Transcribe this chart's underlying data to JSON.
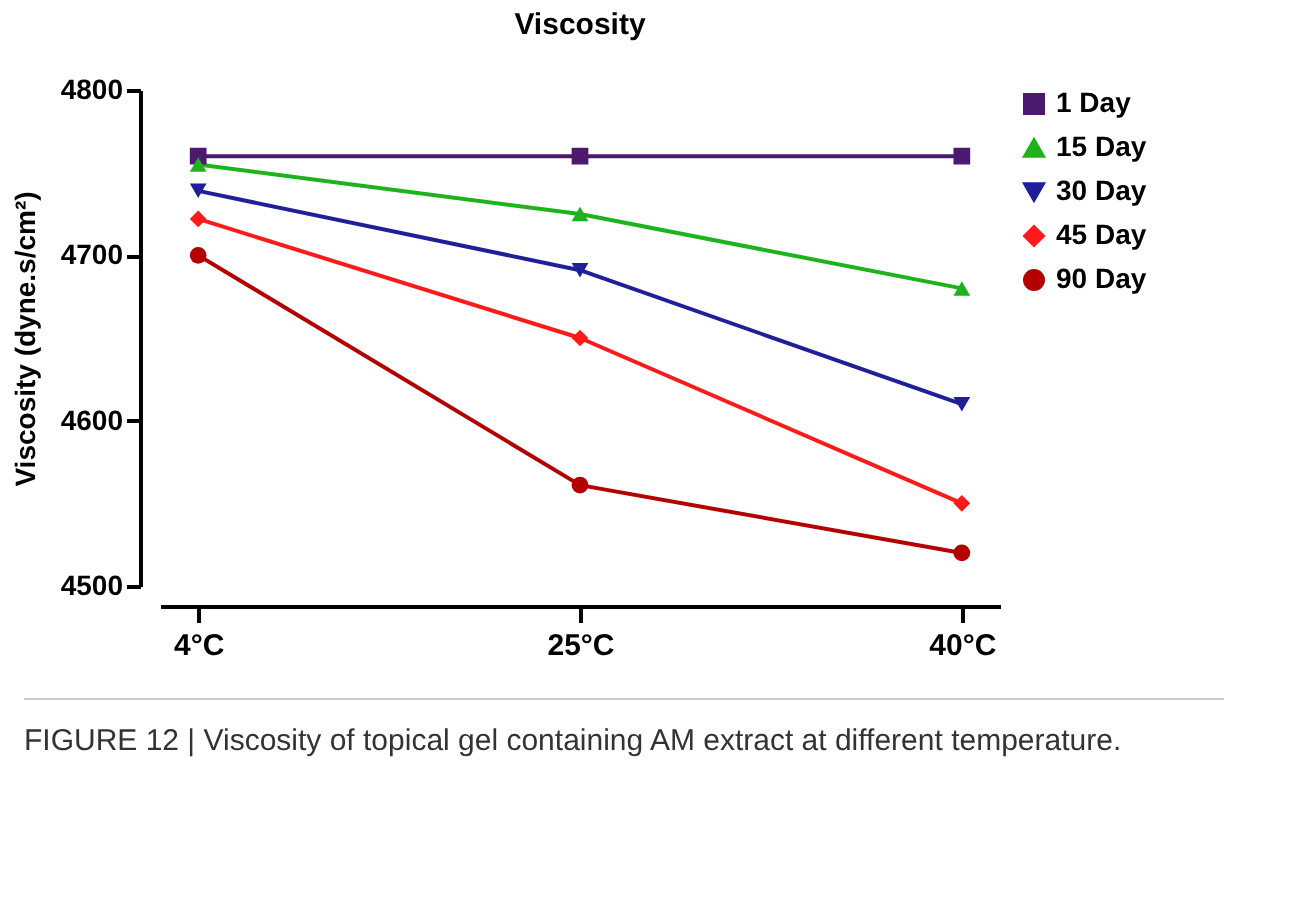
{
  "chart_data": {
    "type": "line",
    "title": "Viscosity",
    "ylabel": "Viscosity (dyne.s/cm²)",
    "categories": [
      "4°C",
      "25°C",
      "40°C"
    ],
    "series": [
      {
        "name": "1 Day",
        "color": "#4b1a6e",
        "marker": "square",
        "values": [
          4760,
          4760,
          4760
        ]
      },
      {
        "name": "15 Day",
        "color": "#1db31d",
        "marker": "triangle",
        "values": [
          4755,
          4725,
          4680
        ]
      },
      {
        "name": "30 Day",
        "color": "#1f1f99",
        "marker": "triangle-down",
        "values": [
          4739,
          4691,
          4610
        ]
      },
      {
        "name": "45 Day",
        "color": "#ff1a1a",
        "marker": "diamond",
        "values": [
          4722,
          4650,
          4550
        ]
      },
      {
        "name": "90 Day",
        "color": "#b30000",
        "marker": "circle",
        "values": [
          4700,
          4561,
          4520
        ]
      }
    ],
    "ylim": [
      4500,
      4800
    ],
    "yticks": [
      4500,
      4600,
      4700,
      4800
    ],
    "grid": false,
    "legend": "top right",
    "annotations": [
      "FIGURE 12 | Viscosity of topical gel containing AM extract at different temperature."
    ]
  }
}
